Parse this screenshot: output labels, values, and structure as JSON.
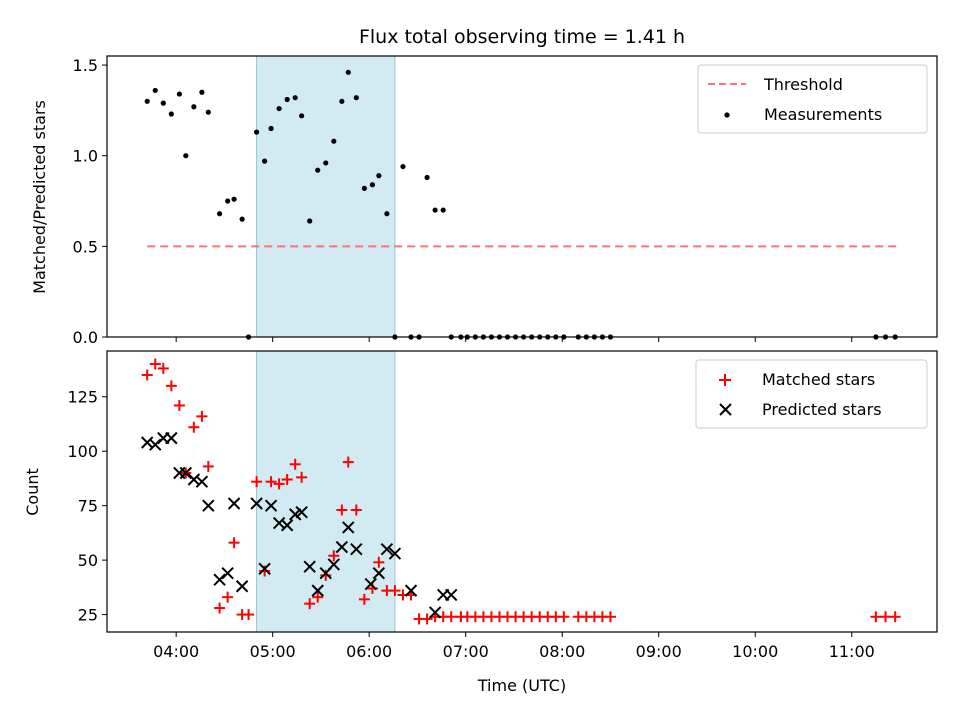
{
  "title": "Flux total observing time = 1.41 h",
  "chart_data": [
    {
      "type": "scatter",
      "ylabel": "Matched/Predicted stars",
      "xlabel": "",
      "ylim": [
        0,
        1.55
      ],
      "yticks": [
        0.0,
        0.5,
        1.0,
        1.5
      ],
      "ytick_labels": [
        "0.0",
        "0.5",
        "1.0",
        "1.5"
      ],
      "shaded_span": [
        "04:50",
        "06:16"
      ],
      "shaded_color": "#add8e6",
      "legend_position": "top-right",
      "threshold": {
        "name": "Threshold",
        "value": 0.5,
        "x_range": [
          "03:42",
          "11:28"
        ],
        "color": "#ff7070"
      },
      "series": [
        {
          "name": "Measurements",
          "color": "#000000",
          "marker": "dot",
          "x": [
            "03:42",
            "03:47",
            "03:52",
            "03:57",
            "04:02",
            "04:06",
            "04:11",
            "04:16",
            "04:20",
            "04:27",
            "04:32",
            "04:36",
            "04:41",
            "04:45",
            "04:50",
            "04:55",
            "04:59",
            "05:04",
            "05:09",
            "05:14",
            "05:18",
            "05:23",
            "05:28",
            "05:33",
            "05:38",
            "05:43",
            "05:47",
            "05:52",
            "05:57",
            "06:02",
            "06:06",
            "06:11",
            "06:16",
            "06:21",
            "06:26",
            "06:31",
            "06:36",
            "06:41",
            "06:46",
            "06:51",
            "06:57",
            "07:01",
            "07:06",
            "07:11",
            "07:16",
            "07:21",
            "07:26",
            "07:31",
            "07:36",
            "07:41",
            "07:46",
            "07:51",
            "07:56",
            "08:01",
            "08:10",
            "08:15",
            "08:20",
            "08:25",
            "08:30",
            "11:15",
            "11:21",
            "11:27"
          ],
          "y": [
            1.3,
            1.36,
            1.29,
            1.23,
            1.34,
            1.0,
            1.27,
            1.35,
            1.24,
            0.68,
            0.75,
            0.76,
            0.65,
            0.0,
            1.13,
            0.97,
            1.15,
            1.26,
            1.31,
            1.32,
            1.22,
            0.64,
            0.92,
            0.96,
            1.08,
            1.3,
            1.46,
            1.32,
            0.82,
            0.84,
            0.89,
            0.68,
            0.0,
            0.94,
            0.0,
            0.0,
            0.88,
            0.7,
            0.7,
            0.0,
            0.0,
            0.0,
            0.0,
            0.0,
            0.0,
            0.0,
            0.0,
            0.0,
            0.0,
            0.0,
            0.0,
            0.0,
            0.0,
            0.0,
            0.0,
            0.0,
            0.0,
            0.0,
            0.0,
            0.0,
            0.0,
            0.0
          ]
        }
      ]
    },
    {
      "type": "scatter",
      "ylabel": "Count",
      "xlabel": "Time (UTC)",
      "ylim": [
        17,
        146
      ],
      "xlim": [
        "03:17",
        "11:53"
      ],
      "yticks": [
        25,
        50,
        75,
        100,
        125
      ],
      "ytick_labels": [
        "25",
        "50",
        "75",
        "100",
        "125"
      ],
      "xticks": [
        "04:00",
        "05:00",
        "06:00",
        "07:00",
        "08:00",
        "09:00",
        "10:00",
        "11:00"
      ],
      "shaded_span": [
        "04:50",
        "06:16"
      ],
      "legend_position": "top-right",
      "series": [
        {
          "name": "Matched stars",
          "color": "#ff0000",
          "marker": "plus",
          "x": [
            "03:42",
            "03:47",
            "03:52",
            "03:57",
            "04:02",
            "04:06",
            "04:11",
            "04:16",
            "04:20",
            "04:27",
            "04:32",
            "04:36",
            "04:41",
            "04:45",
            "04:50",
            "04:55",
            "04:59",
            "05:04",
            "05:09",
            "05:14",
            "05:18",
            "05:23",
            "05:28",
            "05:33",
            "05:38",
            "05:43",
            "05:47",
            "05:52",
            "05:57",
            "06:02",
            "06:06",
            "06:11",
            "06:16",
            "06:21",
            "06:26",
            "06:31",
            "06:36",
            "06:41",
            "06:46",
            "06:51",
            "06:57",
            "07:01",
            "07:06",
            "07:11",
            "07:16",
            "07:21",
            "07:26",
            "07:31",
            "07:36",
            "07:41",
            "07:46",
            "07:51",
            "07:56",
            "08:01",
            "08:10",
            "08:15",
            "08:20",
            "08:25",
            "08:30",
            "11:15",
            "11:21",
            "11:27"
          ],
          "y": [
            135,
            140,
            138,
            130,
            121,
            90,
            111,
            116,
            93,
            28,
            33,
            58,
            25,
            25,
            86,
            45,
            86,
            85,
            87,
            94,
            88,
            30,
            33,
            43,
            52,
            73,
            95,
            73,
            32,
            37,
            49,
            36,
            36,
            34,
            34,
            23,
            23,
            24,
            24,
            24,
            24,
            24,
            24,
            24,
            24,
            24,
            24,
            24,
            24,
            24,
            24,
            24,
            24,
            24,
            24,
            24,
            24,
            24,
            24,
            24,
            24,
            24
          ]
        },
        {
          "name": "Predicted stars",
          "color": "#000000",
          "marker": "x",
          "x": [
            "03:42",
            "03:47",
            "03:52",
            "03:57",
            "04:02",
            "04:06",
            "04:11",
            "04:16",
            "04:20",
            "04:27",
            "04:32",
            "04:36",
            "04:41",
            "04:50",
            "04:55",
            "04:59",
            "05:04",
            "05:09",
            "05:14",
            "05:18",
            "05:23",
            "05:28",
            "05:33",
            "05:38",
            "05:43",
            "05:47",
            "05:52",
            "06:01",
            "06:06",
            "06:11",
            "06:16",
            "06:26",
            "06:41",
            "06:46",
            "06:51"
          ],
          "y": [
            104,
            103,
            106,
            106,
            90,
            90,
            87,
            86,
            75,
            41,
            44,
            76,
            38,
            76,
            46,
            75,
            67,
            66,
            71,
            72,
            47,
            36,
            44,
            48,
            56,
            65,
            55,
            39,
            44,
            55,
            53,
            36,
            26,
            34,
            34
          ]
        }
      ]
    }
  ]
}
